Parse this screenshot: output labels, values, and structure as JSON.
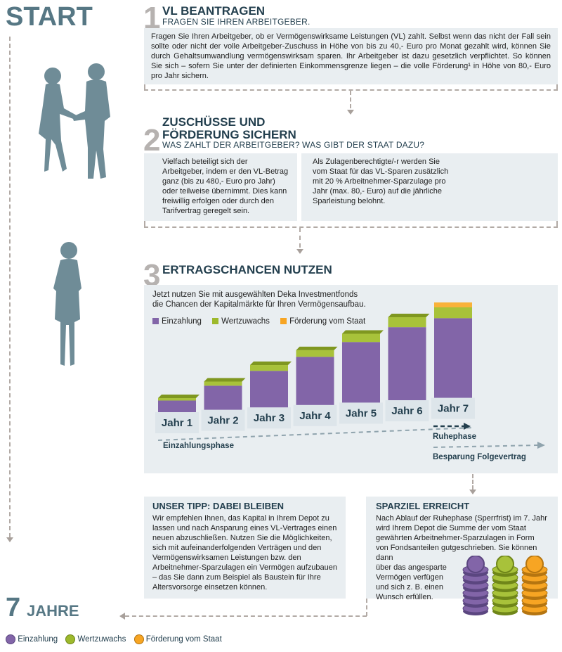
{
  "start_label": "START",
  "end": {
    "number": "7",
    "label": "JAHRE"
  },
  "step1": {
    "number": "1",
    "title": "VL BEANTRAGEN",
    "subtitle": "FRAGEN SIE IHREN ARBEITGEBER.",
    "text": "Fragen Sie Ihren Arbeitgeber, ob er Vermögenswirksame Leistungen (VL) zahlt. Selbst wenn das nicht der Fall sein sollte oder nicht der volle Arbeitgeber-Zuschuss in Höhe von bis zu 40,- Euro pro Monat  gezahlt wird, können Sie durch Gehaltsumwandlung vermögenswirksam sparen. Ihr Arbeitgeber ist dazu gesetzlich verpflichtet. So können Sie sich – sofern Sie unter der definierten Einkommensgrenze liegen – die volle Förderung¹ in Höhe von 80,- Euro pro Jahr sichern."
  },
  "step2": {
    "number": "2",
    "title_line1": "ZUSCHÜSSE UND",
    "title_line2": "FÖRDERUNG SICHERN",
    "left_sub": "WAS ZAHLT DER ARBEITGEBER?",
    "left_text": "Vielfach beteiligt sich der Arbeitgeber, indem er den VL-Betrag ganz (bis zu 480,- Euro pro Jahr) oder teilweise übernimmt. Dies kann freiwillig erfolgen oder durch den Tarifvertrag geregelt sein.",
    "right_sub": "WAS GIBT DER STAAT DAZU?",
    "right_text": "Als Zulagenberechtigte/-r werden Sie vom Staat für das VL-Sparen zusätzlich mit 20 % Arbeitnehmer-Sparzulage pro Jahr (max. 80,- Euro) auf die jährliche Sparleistung belohnt."
  },
  "step3": {
    "number": "3",
    "title": "ERTRAGSCHANCEN NUTZEN",
    "intro_line1": "Jetzt nutzen Sie mit ausgewählten Deka Investmentfonds",
    "intro_line2": "die Chancen der Kapitalmärkte für Ihren Vermögensaufbau.",
    "phase_einzahlung": "Einzahlungsphase",
    "phase_ruhe": "Ruhephase",
    "phase_folge": "Besparung Folgevertrag"
  },
  "chart_data": {
    "type": "bar",
    "stacked": true,
    "categories": [
      "Jahr 1",
      "Jahr 2",
      "Jahr 3",
      "Jahr 4",
      "Jahr 5",
      "Jahr 6",
      "Jahr 7"
    ],
    "series": [
      {
        "name": "Einzahlung",
        "color": "#8265a8",
        "values": [
          14,
          29,
          44,
          58,
          73,
          88,
          96
        ]
      },
      {
        "name": "Wertzuwachs",
        "color": "#9db92c",
        "values": [
          3,
          5,
          7,
          8,
          10,
          12,
          13
        ]
      },
      {
        "name": "Förderung vom Staat",
        "color": "#f7a523",
        "values": [
          0,
          0,
          0,
          0,
          0,
          0,
          16
        ]
      }
    ]
  },
  "tipp": {
    "title": "UNSER TIPP: DABEI BLEIBEN",
    "text": "Wir empfehlen Ihnen, das Kapital in Ihrem Depot zu lassen und nach Ansparung eines VL-Vertrages einen neuen abzuschließen. Nutzen Sie die Möglichkeiten, sich mit aufeinanderfolgenden Verträgen und den Vermögenswirksamen Leistungen bzw. den Arbeitnehmer-Sparzulagen ein Vermögen aufzubauen – das Sie dann zum Beispiel als Baustein für Ihre Altersvorsorge einsetzen können."
  },
  "sparziel": {
    "title": "SPARZIEL ERREICHT",
    "text_line1": "Nach Ablauf der Ruhephase (Sperrfrist) im 7. Jahr wird Ihrem Depot die Summe der vom Staat gewährten Arbeitnehmer-Sparzulagen in Form von Fondsanteilen gutgeschrieben. Sie können dann",
    "text_line2": "über das angesparte Vermögen verfügen und sich z. B. einen Wunsch erfüllen."
  },
  "legend_bottom": [
    {
      "label": "Einzahlung",
      "icon": "euro-coin-icon",
      "color": "#8265a8"
    },
    {
      "label": "Wertzuwachs",
      "icon": "chart-coin-icon",
      "color": "#9db92c"
    },
    {
      "label": "Förderung vom Staat",
      "icon": "eagle-coin-icon",
      "color": "#f7a523"
    }
  ]
}
